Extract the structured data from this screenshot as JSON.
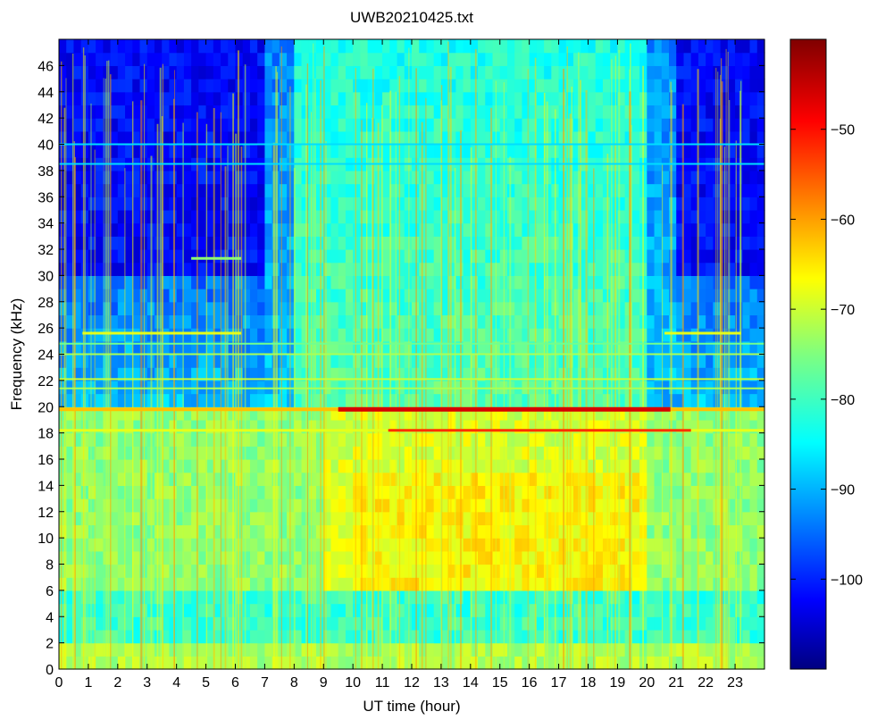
{
  "chart_data": {
    "type": "heatmap",
    "title": "UWB20210425.txt",
    "xlabel": "UT time (hour)",
    "ylabel": "Frequency (kHz)",
    "xlim": [
      0,
      24
    ],
    "ylim": [
      0,
      48
    ],
    "x_ticks": [
      0,
      1,
      2,
      3,
      4,
      5,
      6,
      7,
      8,
      9,
      10,
      11,
      12,
      13,
      14,
      15,
      16,
      17,
      18,
      19,
      20,
      21,
      22,
      23
    ],
    "y_ticks": [
      0,
      2,
      4,
      6,
      8,
      10,
      12,
      14,
      16,
      18,
      20,
      22,
      24,
      26,
      28,
      30,
      32,
      34,
      36,
      38,
      40,
      42,
      44,
      46
    ],
    "colorbar": {
      "colormap": "jet",
      "range": [
        -110,
        -40
      ],
      "ticks": [
        -50,
        -60,
        -70,
        -80,
        -90,
        -100
      ]
    },
    "description_values": {
      "background_level_low_freq_day": -68,
      "background_level_high_freq_night": -100,
      "narrowband_transmitters_khz": [
        18.2,
        19.8,
        21.4,
        22.1,
        24.0,
        24.8,
        25.6
      ],
      "peak_transmitter_level": -45
    }
  }
}
